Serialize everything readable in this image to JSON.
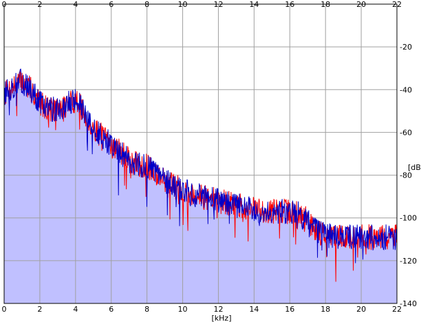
{
  "chart_data": {
    "type": "area",
    "xlabel": "[kHz]",
    "ylabel": "[dB]",
    "xlim": [
      0,
      22
    ],
    "ylim": [
      -140,
      0
    ],
    "x_ticks": [
      "0",
      "2",
      "4",
      "6",
      "8",
      "10",
      "12",
      "14",
      "16",
      "18",
      "20",
      "22"
    ],
    "y_ticks": [
      "",
      "-20",
      "-40",
      "-60",
      "-80",
      "-100",
      "-120",
      "-140"
    ],
    "grid": true,
    "colors": {
      "fill": "#c0c0ff",
      "left": "#ff0000",
      "right": "#0000c8",
      "grid": "#a0a0a0",
      "frame": "#000000"
    },
    "envelope": {
      "x": [
        0,
        0.3,
        0.6,
        1,
        1.5,
        2,
        2.5,
        3,
        3.5,
        4,
        4.3,
        4.6,
        5,
        5.5,
        6,
        6.5,
        7,
        7.5,
        8,
        8.5,
        9,
        9.5,
        10,
        10.5,
        11,
        12,
        13,
        14,
        15,
        16,
        16.5,
        17,
        17.5,
        18,
        19,
        20,
        21,
        22
      ],
      "y": [
        -42,
        -40,
        -38,
        -36,
        -40,
        -46,
        -49,
        -49,
        -47,
        -45,
        -48,
        -54,
        -58,
        -62,
        -66,
        -69,
        -73,
        -75,
        -76,
        -79,
        -82,
        -85,
        -87,
        -89,
        -90,
        -92,
        -94,
        -96,
        -97,
        -97,
        -98,
        -101,
        -106,
        -108,
        -109,
        -109,
        -109,
        -109
      ]
    },
    "series": [
      {
        "values_from": "envelope",
        "seed": 7
      },
      {
        "values_from": "envelope",
        "seed": 13
      }
    ]
  }
}
